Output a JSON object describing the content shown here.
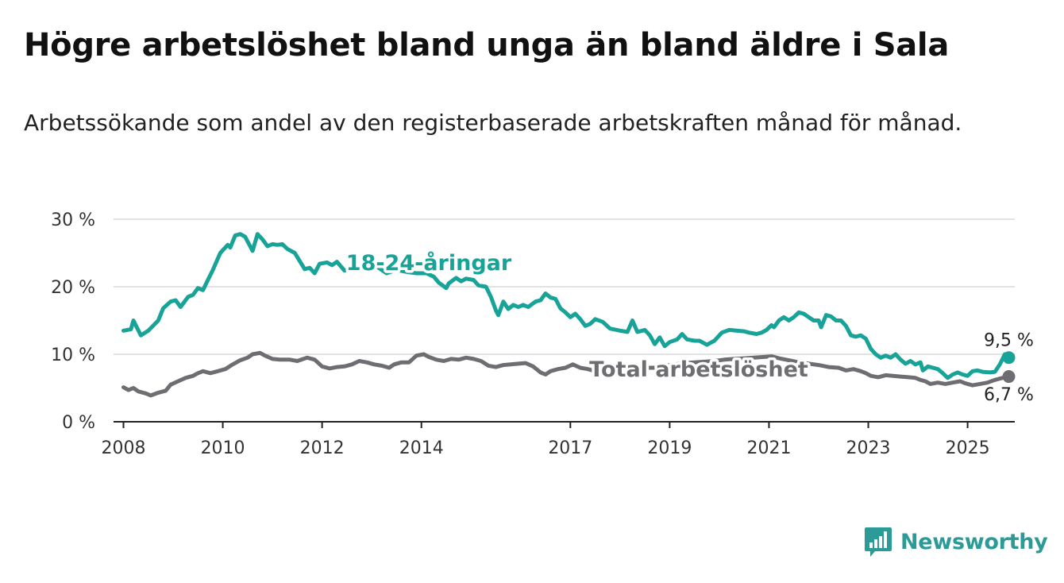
{
  "title": "Högre arbetslöshet bland unga än bland äldre i Sala",
  "subtitle": "Arbetssökande som andel av den registerbaserade arbetskraften månad för månad.",
  "brand": {
    "name": "Newsworthy",
    "icon": "newsworthy-logo-icon",
    "color": "#2c9b97"
  },
  "chart_data": {
    "type": "line",
    "ylim": [
      0,
      30
    ],
    "xlim": [
      2007.8,
      2025.95
    ],
    "y_ticks": [
      0,
      10,
      20,
      30
    ],
    "y_tick_labels": [
      "0 %",
      "10 %",
      "20 %",
      "30 %"
    ],
    "x_ticks": [
      2008,
      2010,
      2012,
      2014,
      2017,
      2019,
      2021,
      2023,
      2025
    ],
    "x_tick_labels": [
      "2008",
      "2010",
      "2012",
      "2014",
      "2017",
      "2019",
      "2021",
      "2023",
      "2025"
    ],
    "grid": true,
    "series": [
      {
        "name": "18-24-åringar",
        "color": "#17a398",
        "end_label": "9,5 %",
        "points": [
          [
            2008.0,
            13.5
          ],
          [
            2008.15,
            13.7
          ],
          [
            2008.2,
            15.0
          ],
          [
            2008.35,
            12.8
          ],
          [
            2008.5,
            13.5
          ],
          [
            2008.7,
            15.0
          ],
          [
            2008.8,
            16.8
          ],
          [
            2008.95,
            17.8
          ],
          [
            2009.05,
            18.0
          ],
          [
            2009.15,
            17.0
          ],
          [
            2009.3,
            18.5
          ],
          [
            2009.4,
            18.8
          ],
          [
            2009.5,
            19.8
          ],
          [
            2009.6,
            19.5
          ],
          [
            2009.7,
            21.0
          ],
          [
            2009.8,
            22.5
          ],
          [
            2009.95,
            25.0
          ],
          [
            2010.1,
            26.2
          ],
          [
            2010.15,
            25.8
          ],
          [
            2010.25,
            27.6
          ],
          [
            2010.35,
            27.8
          ],
          [
            2010.45,
            27.4
          ],
          [
            2010.55,
            26.0
          ],
          [
            2010.6,
            25.3
          ],
          [
            2010.7,
            27.8
          ],
          [
            2010.8,
            27.0
          ],
          [
            2010.9,
            26.0
          ],
          [
            2011.0,
            26.3
          ],
          [
            2011.1,
            26.2
          ],
          [
            2011.2,
            26.3
          ],
          [
            2011.3,
            25.6
          ],
          [
            2011.45,
            25.0
          ],
          [
            2011.55,
            23.8
          ],
          [
            2011.65,
            22.6
          ],
          [
            2011.75,
            22.8
          ],
          [
            2011.85,
            22.0
          ],
          [
            2011.95,
            23.4
          ],
          [
            2012.1,
            23.6
          ],
          [
            2012.2,
            23.2
          ],
          [
            2012.3,
            23.7
          ],
          [
            2012.45,
            22.4
          ],
          [
            2012.6,
            22.8
          ],
          [
            2012.75,
            23.0
          ],
          [
            2012.9,
            22.8
          ],
          [
            2013.1,
            23.0
          ],
          [
            2013.3,
            22.0
          ],
          [
            2013.5,
            22.5
          ],
          [
            2013.7,
            22.2
          ],
          [
            2013.9,
            22.0
          ],
          [
            2014.1,
            22.0
          ],
          [
            2014.25,
            21.5
          ],
          [
            2014.35,
            20.6
          ],
          [
            2014.5,
            19.8
          ],
          [
            2014.55,
            20.5
          ],
          [
            2014.7,
            21.3
          ],
          [
            2014.8,
            20.8
          ],
          [
            2014.9,
            21.2
          ],
          [
            2015.05,
            21.0
          ],
          [
            2015.15,
            20.2
          ],
          [
            2015.3,
            20.0
          ],
          [
            2015.4,
            18.5
          ],
          [
            2015.5,
            16.5
          ],
          [
            2015.55,
            15.8
          ],
          [
            2015.65,
            17.8
          ],
          [
            2015.75,
            16.7
          ],
          [
            2015.85,
            17.3
          ],
          [
            2015.95,
            17.0
          ],
          [
            2016.05,
            17.3
          ],
          [
            2016.15,
            17.0
          ],
          [
            2016.3,
            17.8
          ],
          [
            2016.4,
            18.0
          ],
          [
            2016.5,
            19.0
          ],
          [
            2016.6,
            18.4
          ],
          [
            2016.7,
            18.2
          ],
          [
            2016.8,
            16.8
          ],
          [
            2016.9,
            16.2
          ],
          [
            2017.0,
            15.5
          ],
          [
            2017.1,
            16.0
          ],
          [
            2017.2,
            15.2
          ],
          [
            2017.3,
            14.2
          ],
          [
            2017.4,
            14.5
          ],
          [
            2017.5,
            15.2
          ],
          [
            2017.65,
            14.8
          ],
          [
            2017.8,
            13.8
          ],
          [
            2018.0,
            13.5
          ],
          [
            2018.15,
            13.3
          ],
          [
            2018.25,
            15.0
          ],
          [
            2018.35,
            13.3
          ],
          [
            2018.5,
            13.6
          ],
          [
            2018.6,
            12.8
          ],
          [
            2018.7,
            11.5
          ],
          [
            2018.8,
            12.5
          ],
          [
            2018.9,
            11.2
          ],
          [
            2019.0,
            11.8
          ],
          [
            2019.15,
            12.2
          ],
          [
            2019.25,
            13.0
          ],
          [
            2019.35,
            12.2
          ],
          [
            2019.5,
            12.0
          ],
          [
            2019.6,
            12.0
          ],
          [
            2019.75,
            11.4
          ],
          [
            2019.9,
            12.0
          ],
          [
            2020.05,
            13.2
          ],
          [
            2020.2,
            13.6
          ],
          [
            2020.35,
            13.5
          ],
          [
            2020.5,
            13.4
          ],
          [
            2020.6,
            13.2
          ],
          [
            2020.75,
            13.0
          ],
          [
            2020.85,
            13.2
          ],
          [
            2020.95,
            13.6
          ],
          [
            2021.05,
            14.3
          ],
          [
            2021.1,
            14.0
          ],
          [
            2021.2,
            15.0
          ],
          [
            2021.3,
            15.5
          ],
          [
            2021.4,
            15.0
          ],
          [
            2021.5,
            15.5
          ],
          [
            2021.6,
            16.2
          ],
          [
            2021.7,
            16.0
          ],
          [
            2021.8,
            15.5
          ],
          [
            2021.9,
            15.0
          ],
          [
            2022.0,
            15.0
          ],
          [
            2022.05,
            14.0
          ],
          [
            2022.15,
            15.8
          ],
          [
            2022.25,
            15.6
          ],
          [
            2022.35,
            15.0
          ],
          [
            2022.45,
            15.0
          ],
          [
            2022.55,
            14.2
          ],
          [
            2022.65,
            12.8
          ],
          [
            2022.75,
            12.6
          ],
          [
            2022.85,
            12.8
          ],
          [
            2022.95,
            12.3
          ],
          [
            2023.05,
            10.8
          ],
          [
            2023.15,
            10.0
          ],
          [
            2023.25,
            9.5
          ],
          [
            2023.35,
            9.8
          ],
          [
            2023.45,
            9.5
          ],
          [
            2023.55,
            10.0
          ],
          [
            2023.65,
            9.2
          ],
          [
            2023.75,
            8.6
          ],
          [
            2023.85,
            9.0
          ],
          [
            2023.95,
            8.5
          ],
          [
            2024.05,
            8.8
          ],
          [
            2024.1,
            7.6
          ],
          [
            2024.2,
            8.2
          ],
          [
            2024.3,
            8.0
          ],
          [
            2024.4,
            7.8
          ],
          [
            2024.5,
            7.2
          ],
          [
            2024.6,
            6.5
          ],
          [
            2024.7,
            7.0
          ],
          [
            2024.8,
            7.3
          ],
          [
            2024.9,
            7.0
          ],
          [
            2025.0,
            6.8
          ],
          [
            2025.1,
            7.5
          ],
          [
            2025.2,
            7.6
          ],
          [
            2025.3,
            7.4
          ],
          [
            2025.45,
            7.3
          ],
          [
            2025.55,
            7.4
          ],
          [
            2025.65,
            8.5
          ],
          [
            2025.75,
            10.0
          ],
          [
            2025.83,
            9.5
          ]
        ]
      },
      {
        "name": "Total arbetslöshet",
        "color": "#6e6e72",
        "end_label": "6,7 %",
        "points": [
          [
            2008.0,
            5.1
          ],
          [
            2008.1,
            4.7
          ],
          [
            2008.2,
            5.0
          ],
          [
            2008.3,
            4.5
          ],
          [
            2008.45,
            4.2
          ],
          [
            2008.55,
            3.9
          ],
          [
            2008.7,
            4.3
          ],
          [
            2008.85,
            4.6
          ],
          [
            2008.95,
            5.5
          ],
          [
            2009.1,
            6.0
          ],
          [
            2009.25,
            6.5
          ],
          [
            2009.4,
            6.8
          ],
          [
            2009.5,
            7.2
          ],
          [
            2009.6,
            7.5
          ],
          [
            2009.75,
            7.2
          ],
          [
            2009.9,
            7.5
          ],
          [
            2010.05,
            7.8
          ],
          [
            2010.2,
            8.5
          ],
          [
            2010.35,
            9.1
          ],
          [
            2010.5,
            9.5
          ],
          [
            2010.6,
            10.0
          ],
          [
            2010.75,
            10.2
          ],
          [
            2010.85,
            9.8
          ],
          [
            2011.0,
            9.3
          ],
          [
            2011.15,
            9.2
          ],
          [
            2011.35,
            9.2
          ],
          [
            2011.5,
            9.0
          ],
          [
            2011.7,
            9.5
          ],
          [
            2011.85,
            9.2
          ],
          [
            2012.0,
            8.2
          ],
          [
            2012.15,
            7.9
          ],
          [
            2012.3,
            8.1
          ],
          [
            2012.45,
            8.2
          ],
          [
            2012.6,
            8.5
          ],
          [
            2012.75,
            9.0
          ],
          [
            2012.9,
            8.8
          ],
          [
            2013.05,
            8.5
          ],
          [
            2013.2,
            8.3
          ],
          [
            2013.35,
            8.0
          ],
          [
            2013.45,
            8.5
          ],
          [
            2013.6,
            8.8
          ],
          [
            2013.75,
            8.8
          ],
          [
            2013.9,
            9.8
          ],
          [
            2014.05,
            10.0
          ],
          [
            2014.15,
            9.6
          ],
          [
            2014.3,
            9.2
          ],
          [
            2014.45,
            9.0
          ],
          [
            2014.6,
            9.3
          ],
          [
            2014.75,
            9.2
          ],
          [
            2014.9,
            9.5
          ],
          [
            2015.05,
            9.3
          ],
          [
            2015.2,
            9.0
          ],
          [
            2015.35,
            8.3
          ],
          [
            2015.5,
            8.1
          ],
          [
            2015.65,
            8.4
          ],
          [
            2015.8,
            8.5
          ],
          [
            2015.95,
            8.6
          ],
          [
            2016.1,
            8.7
          ],
          [
            2016.25,
            8.2
          ],
          [
            2016.4,
            7.3
          ],
          [
            2016.5,
            7.0
          ],
          [
            2016.6,
            7.5
          ],
          [
            2016.75,
            7.8
          ],
          [
            2016.9,
            8.0
          ],
          [
            2017.05,
            8.5
          ],
          [
            2017.2,
            8.0
          ],
          [
            2017.35,
            7.8
          ],
          [
            2017.5,
            7.5
          ],
          [
            2017.65,
            7.8
          ],
          [
            2017.8,
            7.7
          ],
          [
            2017.95,
            8.0
          ],
          [
            2018.1,
            8.3
          ],
          [
            2018.3,
            8.2
          ],
          [
            2018.5,
            8.0
          ],
          [
            2018.7,
            8.0
          ],
          [
            2018.9,
            8.3
          ],
          [
            2019.1,
            8.5
          ],
          [
            2019.3,
            8.7
          ],
          [
            2019.5,
            8.8
          ],
          [
            2019.7,
            8.9
          ],
          [
            2019.9,
            9.0
          ],
          [
            2020.1,
            9.2
          ],
          [
            2020.3,
            9.3
          ],
          [
            2020.5,
            9.4
          ],
          [
            2020.7,
            9.5
          ],
          [
            2020.9,
            9.6
          ],
          [
            2021.05,
            9.7
          ],
          [
            2021.2,
            9.4
          ],
          [
            2021.4,
            9.1
          ],
          [
            2021.6,
            8.8
          ],
          [
            2021.8,
            8.6
          ],
          [
            2022.0,
            8.4
          ],
          [
            2022.2,
            8.1
          ],
          [
            2022.4,
            8.0
          ],
          [
            2022.55,
            7.6
          ],
          [
            2022.7,
            7.8
          ],
          [
            2022.85,
            7.5
          ],
          [
            2022.95,
            7.2
          ],
          [
            2023.05,
            6.8
          ],
          [
            2023.2,
            6.6
          ],
          [
            2023.35,
            6.9
          ],
          [
            2023.5,
            6.8
          ],
          [
            2023.65,
            6.7
          ],
          [
            2023.8,
            6.6
          ],
          [
            2023.95,
            6.5
          ],
          [
            2024.05,
            6.2
          ],
          [
            2024.15,
            6.0
          ],
          [
            2024.25,
            5.6
          ],
          [
            2024.4,
            5.8
          ],
          [
            2024.55,
            5.6
          ],
          [
            2024.7,
            5.8
          ],
          [
            2024.85,
            6.0
          ],
          [
            2024.95,
            5.7
          ],
          [
            2025.1,
            5.4
          ],
          [
            2025.25,
            5.6
          ],
          [
            2025.4,
            5.8
          ],
          [
            2025.55,
            6.2
          ],
          [
            2025.7,
            6.5
          ],
          [
            2025.83,
            6.7
          ]
        ]
      }
    ]
  }
}
